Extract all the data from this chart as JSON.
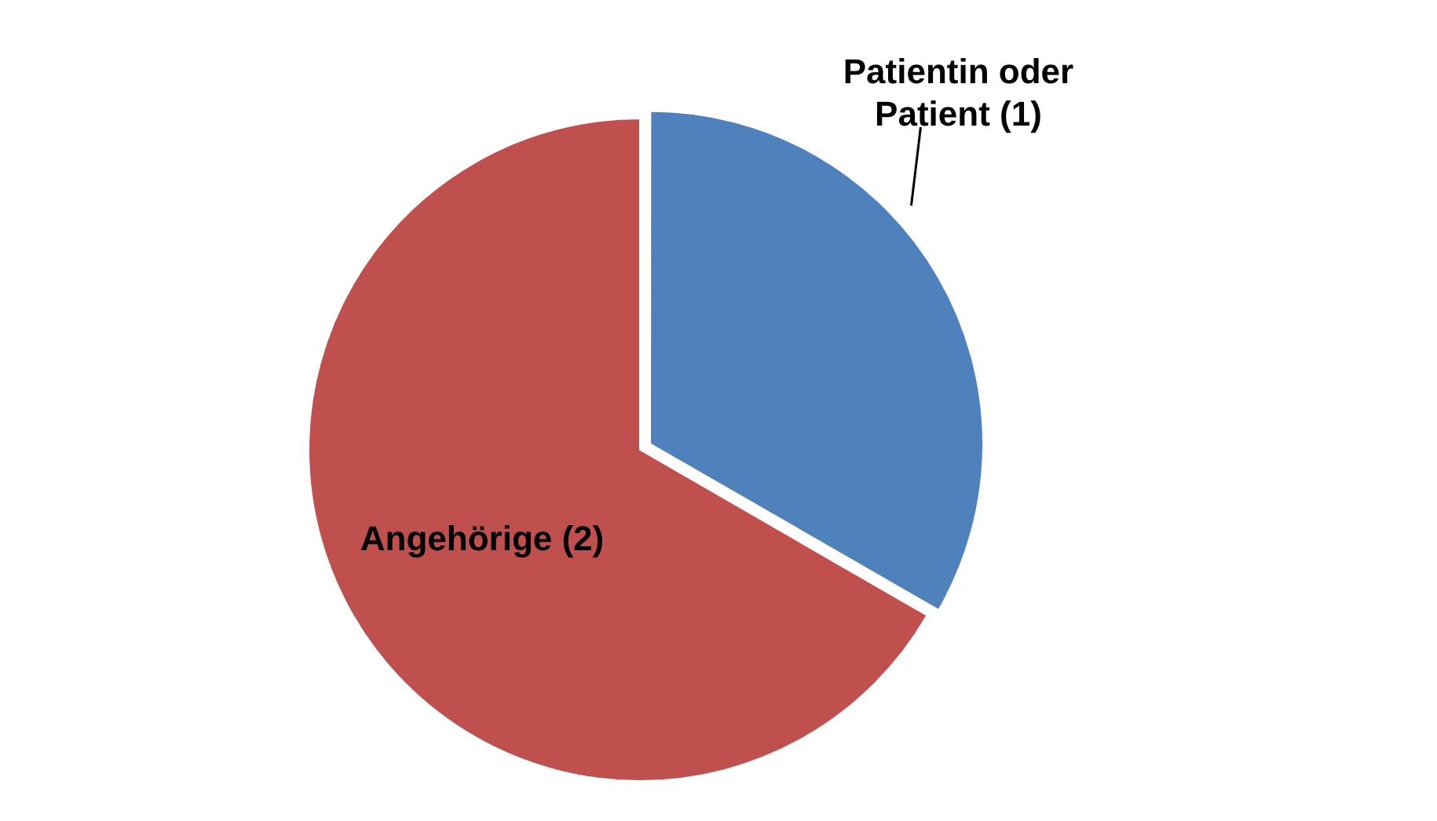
{
  "chart_data": {
    "type": "pie",
    "categories": [
      "Patientin oder Patient (1)",
      "Angehörige (2)"
    ],
    "values": [
      1,
      2
    ],
    "colors": [
      "#4f81bd",
      "#c0504d"
    ],
    "legend": false
  }
}
